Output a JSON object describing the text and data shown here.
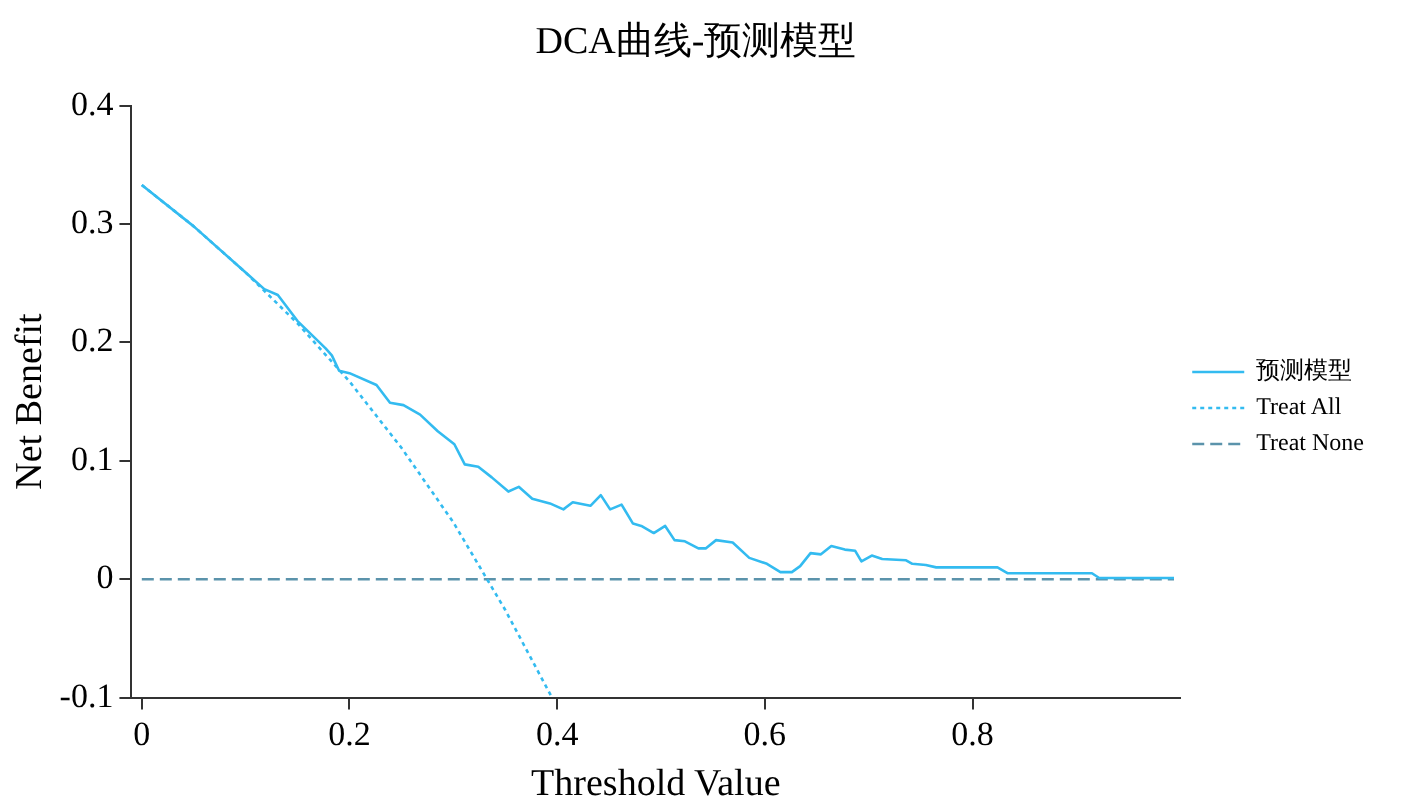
{
  "chart_data": {
    "type": "line",
    "title": "DCA曲线-预测模型",
    "xlabel": "Threshold Value",
    "ylabel": "Net Benefit",
    "xlim": [
      -0.01,
      1
    ],
    "xticks": [
      0,
      0.2,
      0.4,
      0.6,
      0.8
    ],
    "ylim": [
      -0.1,
      0.4
    ],
    "yticks": [
      -0.1,
      0,
      0.1,
      0.2,
      0.3,
      0.4
    ],
    "grid": false,
    "legend": "right",
    "marker": "none",
    "series": [
      {
        "name": "预测模型",
        "color": "#33bbf0",
        "line_style": "solid",
        "x": [
          0,
          0.05,
          0.1,
          0.118,
          0.131,
          0.15,
          0.177,
          0.183,
          0.19,
          0.2,
          0.226,
          0.239,
          0.252,
          0.268,
          0.285,
          0.301,
          0.311,
          0.324,
          0.337,
          0.353,
          0.363,
          0.376,
          0.393,
          0.406,
          0.415,
          0.432,
          0.442,
          0.451,
          0.462,
          0.473,
          0.481,
          0.493,
          0.504,
          0.513,
          0.523,
          0.536,
          0.543,
          0.553,
          0.569,
          0.585,
          0.602,
          0.615,
          0.626,
          0.634,
          0.644,
          0.654,
          0.664,
          0.677,
          0.687,
          0.693,
          0.703,
          0.713,
          0.736,
          0.742,
          0.755,
          0.765,
          0.824,
          0.834,
          0.915,
          0.922,
          0.994
        ],
        "values": [
          0.333,
          0.298,
          0.259,
          0.245,
          0.24,
          0.218,
          0.195,
          0.189,
          0.176,
          0.174,
          0.164,
          0.149,
          0.147,
          0.139,
          0.125,
          0.114,
          0.097,
          0.095,
          0.086,
          0.074,
          0.078,
          0.068,
          0.064,
          0.059,
          0.065,
          0.062,
          0.071,
          0.059,
          0.063,
          0.047,
          0.045,
          0.039,
          0.045,
          0.033,
          0.032,
          0.026,
          0.026,
          0.033,
          0.031,
          0.018,
          0.013,
          0.006,
          0.006,
          0.011,
          0.022,
          0.021,
          0.028,
          0.025,
          0.024,
          0.015,
          0.02,
          0.017,
          0.016,
          0.013,
          0.012,
          0.01,
          0.01,
          0.005,
          0.005,
          0.001,
          0.001
        ]
      },
      {
        "name": "Treat All",
        "color": "#33bbf0",
        "line_style": "dotted",
        "x": [
          0,
          0.05,
          0.1,
          0.15,
          0.2,
          0.25,
          0.3,
          0.35,
          0.395
        ],
        "values": [
          0.333,
          0.298,
          0.259,
          0.216,
          0.167,
          0.111,
          0.048,
          -0.026,
          -0.1
        ]
      },
      {
        "name": "Treat None",
        "color": "#5b93ab",
        "line_style": "dashed",
        "x": [
          0,
          0.994
        ],
        "values": [
          0,
          0
        ]
      }
    ]
  }
}
